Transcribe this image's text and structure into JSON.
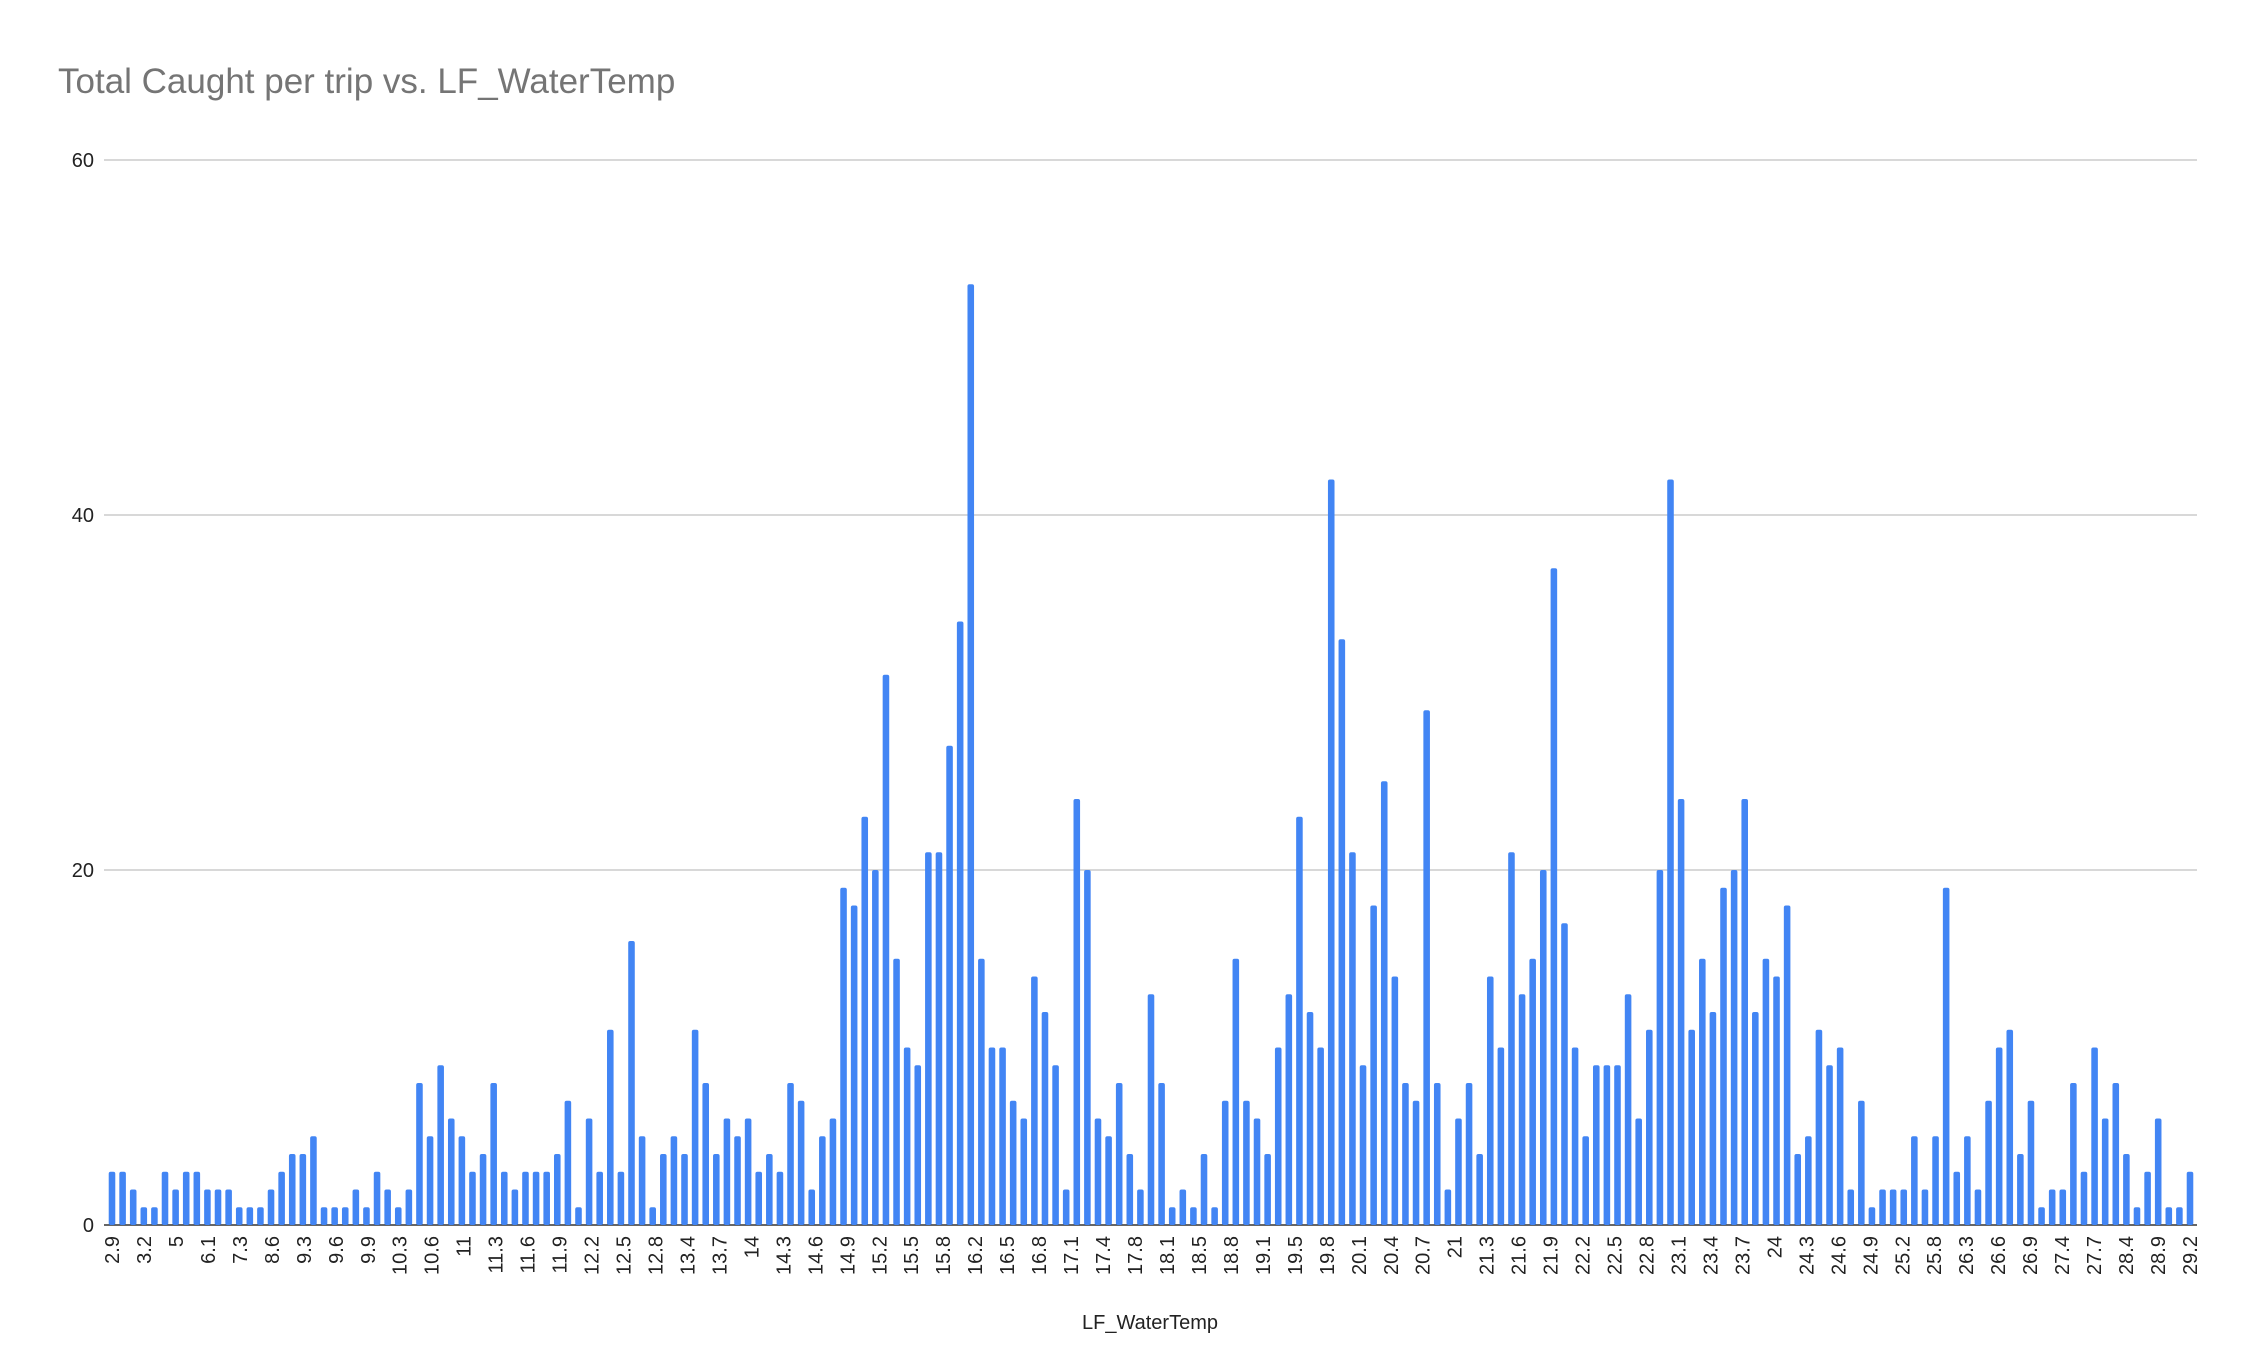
{
  "chart_data": {
    "type": "bar",
    "title": "Total Caught per trip vs. LF_WaterTemp",
    "xlabel": "LF_WaterTemp",
    "ylabel": "",
    "ylim": [
      0,
      60
    ],
    "yticks": [
      "0",
      "20",
      "40",
      "60"
    ],
    "grid": true,
    "legend": "none",
    "color": "#4285f4",
    "xtick_labels": [
      "2.9",
      "3.2",
      "5",
      "6.1",
      "7.3",
      "8.6",
      "9.3",
      "9.6",
      "9.9",
      "10.3",
      "10.6",
      "11",
      "11.3",
      "11.6",
      "11.9",
      "12.2",
      "12.5",
      "12.8",
      "13.4",
      "13.7",
      "14",
      "14.3",
      "14.6",
      "14.9",
      "15.2",
      "15.5",
      "15.8",
      "16.2",
      "16.5",
      "16.8",
      "17.1",
      "17.4",
      "17.8",
      "18.1",
      "18.5",
      "18.8",
      "19.1",
      "19.5",
      "19.8",
      "20.1",
      "20.4",
      "20.7",
      "21",
      "21.3",
      "21.6",
      "21.9",
      "22.2",
      "22.5",
      "22.8",
      "23.1",
      "23.4",
      "23.7",
      "24",
      "24.3",
      "24.6",
      "24.9",
      "25.2",
      "25.8",
      "26.3",
      "26.6",
      "26.9",
      "27.4",
      "27.7",
      "28.4",
      "28.9",
      "29.2"
    ],
    "values": [
      3,
      3,
      2,
      1,
      1,
      3,
      2,
      3,
      3,
      2,
      2,
      2,
      1,
      1,
      1,
      2,
      3,
      4,
      4,
      5,
      1,
      1,
      1,
      2,
      1,
      3,
      2,
      1,
      2,
      8,
      5,
      9,
      6,
      5,
      3,
      4,
      8,
      3,
      2,
      3,
      3,
      3,
      4,
      7,
      1,
      6,
      3,
      11,
      3,
      16,
      5,
      1,
      4,
      5,
      4,
      11,
      8,
      4,
      6,
      5,
      6,
      3,
      4,
      3,
      8,
      7,
      2,
      5,
      6,
      19,
      18,
      23,
      20,
      31,
      15,
      10,
      9,
      21,
      21,
      27,
      34,
      53,
      15,
      10,
      10,
      7,
      6,
      14,
      12,
      9,
      2,
      24,
      20,
      6,
      5,
      8,
      4,
      2,
      13,
      8,
      1,
      2,
      1,
      4,
      1,
      7,
      15,
      7,
      6,
      4,
      10,
      13,
      23,
      12,
      10,
      42,
      33,
      21,
      9,
      18,
      25,
      14,
      8,
      7,
      29,
      8,
      2,
      6,
      8,
      4,
      14,
      10,
      21,
      13,
      15,
      20,
      37,
      17,
      10,
      5,
      9,
      9,
      9,
      13,
      6,
      11,
      20,
      42,
      24,
      11,
      15,
      12,
      19,
      20,
      24,
      12,
      15,
      14,
      18,
      4,
      5,
      11,
      9,
      10,
      2,
      7,
      1,
      2,
      2,
      2,
      5,
      2,
      5,
      19,
      3,
      5,
      2,
      7,
      10,
      11,
      4,
      7,
      1,
      2,
      2,
      8,
      3,
      10,
      6,
      8,
      4,
      1,
      3,
      6,
      1,
      1,
      3
    ]
  }
}
